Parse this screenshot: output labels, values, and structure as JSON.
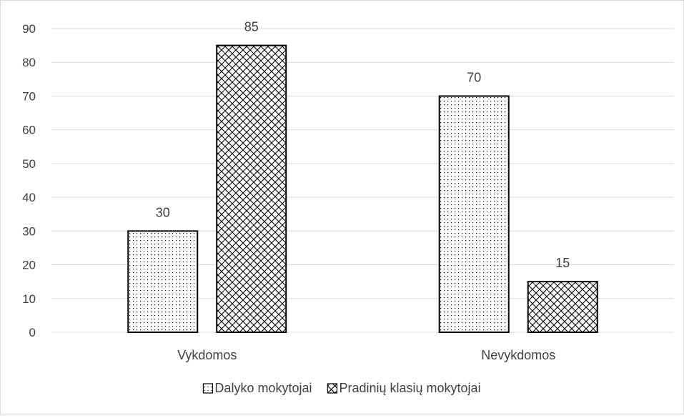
{
  "chart_data": {
    "type": "bar",
    "categories": [
      "Vykdomos",
      "Nevykdomos"
    ],
    "series": [
      {
        "name": "Dalyko mokytojai",
        "values": [
          30,
          70
        ],
        "pattern": "dots"
      },
      {
        "name": "Pradinių klasių mokytojai",
        "values": [
          85,
          15
        ],
        "pattern": "crosshatch"
      }
    ],
    "ylim": [
      0,
      90
    ],
    "yticks": [
      0,
      10,
      20,
      30,
      40,
      50,
      60,
      70,
      80,
      90
    ],
    "grid": true,
    "legend": "bottom",
    "data_labels": true,
    "colors": {
      "bar_stroke": "#000000",
      "grid": "#d9d9d9",
      "text": "#404040",
      "frame": "#d9d9d9"
    }
  }
}
